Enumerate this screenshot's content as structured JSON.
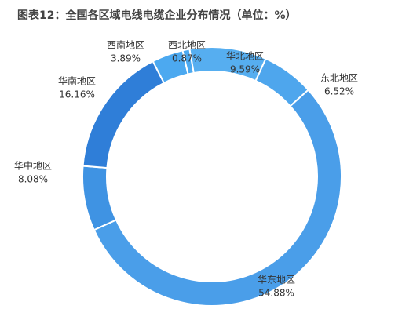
{
  "chart_data": {
    "type": "pie",
    "title": "图表12：全国各区域电线电缆企业分布情况（单位：%）",
    "categories": [
      "华北地区",
      "东北地区",
      "华东地区",
      "华中地区",
      "华南地区",
      "西南地区",
      "西北地区"
    ],
    "values": [
      9.59,
      6.52,
      54.88,
      8.08,
      16.16,
      3.89,
      0.87
    ],
    "value_labels": [
      "9.59%",
      "6.52%",
      "54.88%",
      "8.08%",
      "16.16%",
      "3.89%",
      "0.87%"
    ],
    "colors": [
      "#56aef0",
      "#4ea6ed",
      "#4a9ee9",
      "#3f93e3",
      "#2f7ed8",
      "#4ca9f0",
      "#4ca9f0"
    ],
    "donut": true
  }
}
